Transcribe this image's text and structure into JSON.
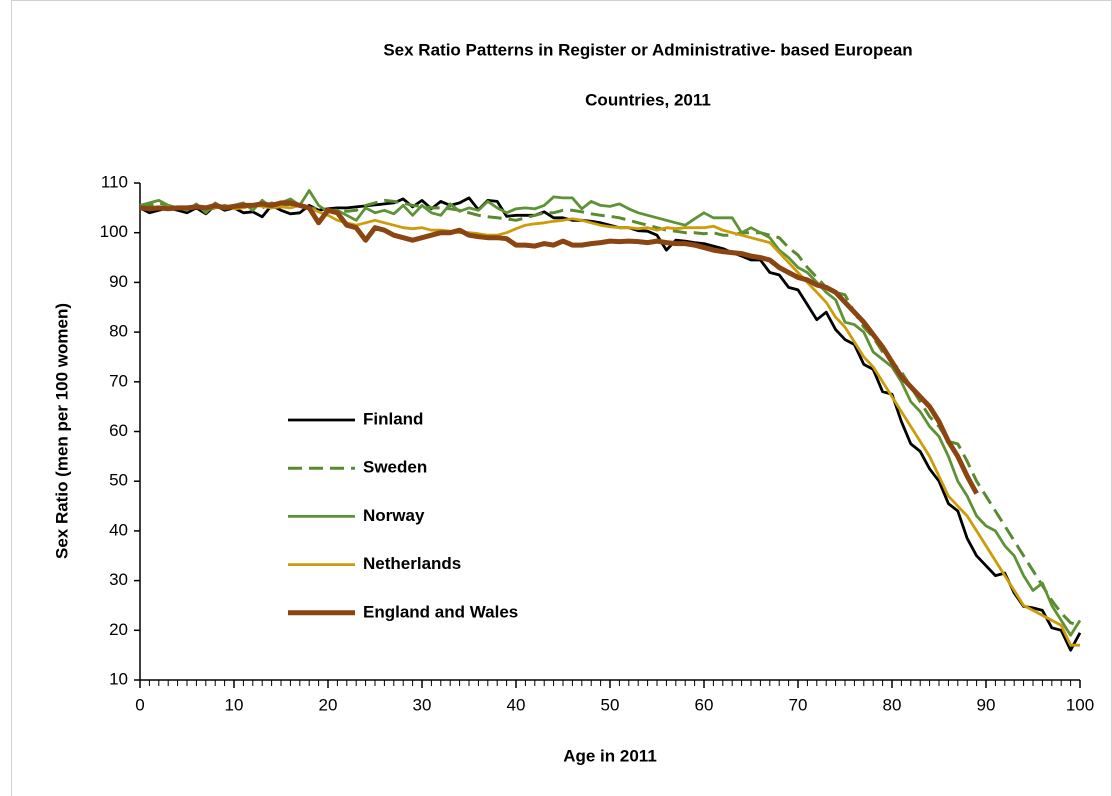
{
  "chart_data": {
    "type": "line",
    "title_lines": [
      "Sex Ratio Patterns in Register or Administrative- based European",
      "Countries,  2011"
    ],
    "x_label": "Age in 2011",
    "y_label": "Sex Ratio (men per 100 women)",
    "x": [
      0,
      1,
      2,
      3,
      4,
      5,
      6,
      7,
      8,
      9,
      10,
      11,
      12,
      13,
      14,
      15,
      16,
      17,
      18,
      19,
      20,
      21,
      22,
      23,
      24,
      25,
      26,
      27,
      28,
      29,
      30,
      31,
      32,
      33,
      34,
      35,
      36,
      37,
      38,
      39,
      40,
      41,
      42,
      43,
      44,
      45,
      46,
      47,
      48,
      49,
      50,
      51,
      52,
      53,
      54,
      55,
      56,
      57,
      58,
      59,
      60,
      61,
      62,
      63,
      64,
      65,
      66,
      67,
      68,
      69,
      70,
      71,
      72,
      73,
      74,
      75,
      76,
      77,
      78,
      79,
      80,
      81,
      82,
      83,
      84,
      85,
      86,
      87,
      88,
      89,
      90,
      91,
      92,
      93,
      94,
      95,
      96,
      97,
      98,
      99,
      100
    ],
    "xlim": [
      0,
      100
    ],
    "xticks": [
      0,
      10,
      20,
      30,
      40,
      50,
      60,
      70,
      80,
      90,
      100
    ],
    "ylim": [
      10,
      110
    ],
    "yticks": [
      10,
      20,
      30,
      40,
      50,
      60,
      70,
      80,
      90,
      100,
      110
    ],
    "series": [
      {
        "name": "Finland",
        "color": "#000000",
        "values": [
          105,
          104,
          104.5,
          105,
          104.5,
          104,
          105,
          103.8,
          105.5,
          104.5,
          105,
          104,
          104.2,
          103.2,
          105.5,
          104.5,
          103.8,
          104,
          105.5,
          104.5,
          104.8,
          105,
          105,
          105.2,
          105.4,
          105.6,
          105.8,
          106,
          106.8,
          105.2,
          106.5,
          104.8,
          106.3,
          105.5,
          106,
          107,
          104.6,
          106.5,
          106.3,
          103.3,
          103.5,
          103.5,
          103.5,
          104.2,
          103,
          103,
          102.5,
          102.5,
          102.3,
          102,
          101.5,
          101,
          101,
          100.4,
          100.3,
          99.5,
          96.5,
          98.5,
          98.3,
          98,
          97.8,
          97.3,
          96.8,
          96,
          95.3,
          94.5,
          94.5,
          92,
          91.5,
          89,
          88.5,
          85.5,
          82.5,
          84,
          80.5,
          78.5,
          77.5,
          73.5,
          72.5,
          68,
          67.5,
          62,
          57.5,
          56,
          52.5,
          50,
          45.5,
          44,
          38.5,
          35,
          33,
          31,
          31.5,
          27.5,
          24.8,
          24.5,
          24,
          20.5,
          20,
          16,
          19.5
        ]
      },
      {
        "name": "Sweden",
        "color": "#5a8a30",
        "dashed": true,
        "values": [
          105,
          105.5,
          106,
          105.5,
          105,
          104.8,
          105.2,
          104.5,
          105,
          105.5,
          105,
          105.3,
          105.5,
          105,
          106,
          105.5,
          105.7,
          105.5,
          105,
          104.8,
          104.5,
          104.5,
          104.3,
          104.5,
          105.5,
          106,
          106.5,
          106.3,
          106,
          105.5,
          105.3,
          105,
          105,
          104.8,
          104.5,
          104,
          103.5,
          103.2,
          103,
          102.8,
          102.5,
          103,
          103.5,
          104,
          104,
          104.5,
          104.5,
          104.2,
          103.8,
          103.5,
          103.3,
          103,
          102.5,
          102,
          101.5,
          101,
          100.5,
          100.3,
          100,
          100,
          99.8,
          100,
          99.5,
          99.5,
          100,
          100,
          100,
          99.5,
          99,
          97,
          95.5,
          93,
          91,
          89,
          88,
          87.5,
          84,
          81,
          79,
          76,
          74,
          72,
          69,
          66,
          63,
          61,
          58,
          57.5,
          54,
          50,
          47,
          44,
          41,
          38,
          35,
          32,
          29,
          26,
          23.5,
          21.5,
          21
        ]
      },
      {
        "name": "Norway",
        "color": "#5e9236",
        "values": [
          105.5,
          106,
          106.5,
          105.5,
          105,
          104.5,
          105.8,
          104,
          106,
          104.8,
          105.5,
          106,
          104.5,
          106.5,
          105,
          106,
          106.8,
          105.5,
          108.5,
          105.5,
          104.2,
          104.5,
          103.5,
          102.5,
          105,
          104,
          104.5,
          103.8,
          105.5,
          103.5,
          105.5,
          104,
          103.5,
          105.8,
          104.3,
          105,
          104.5,
          106.3,
          105,
          104,
          104.8,
          105,
          104.8,
          105.5,
          107.2,
          107,
          107,
          104.8,
          106.3,
          105.5,
          105.3,
          105.8,
          104.8,
          104,
          103.5,
          103,
          102.5,
          102,
          101.5,
          102.8,
          104,
          103,
          103,
          103,
          100,
          101,
          100,
          99,
          96.5,
          95,
          93,
          92,
          90,
          88,
          86.5,
          82,
          81.5,
          80,
          76,
          74.5,
          73,
          70,
          66,
          64,
          61,
          59,
          55,
          50,
          47,
          43,
          41,
          40,
          37,
          35,
          31,
          28,
          29.5,
          25,
          22,
          19,
          22
        ]
      },
      {
        "name": "Netherlands",
        "color": "#cc9c0a",
        "values": [
          105,
          104.8,
          105,
          105.2,
          105,
          104.8,
          105,
          105.2,
          105,
          105.3,
          104.8,
          105,
          105.5,
          105.3,
          105,
          105.2,
          105,
          105.5,
          105,
          104.2,
          103.5,
          102.5,
          102,
          101.5,
          102,
          102.5,
          102,
          101.5,
          101,
          100.8,
          101,
          100.5,
          100.5,
          100.3,
          100,
          100,
          99.8,
          99.5,
          99.5,
          100,
          100.8,
          101.5,
          101.8,
          102,
          102.3,
          102.5,
          102.8,
          102.5,
          102,
          101.5,
          101.2,
          101,
          101,
          100.8,
          101,
          100.5,
          101,
          100.8,
          101,
          101,
          101,
          101.3,
          100.5,
          100,
          99.5,
          99,
          98.5,
          98,
          96,
          94,
          92,
          90,
          88,
          86,
          83,
          81,
          78,
          75,
          73,
          70,
          67,
          64,
          61,
          58,
          55,
          51,
          47,
          45,
          43,
          40,
          37,
          34,
          31,
          28,
          25,
          24,
          23,
          22,
          21,
          17,
          17
        ]
      },
      {
        "name": "England and Wales",
        "color": "#8b4513",
        "thick": true,
        "values": [
          105,
          104.8,
          105,
          104.8,
          105,
          105,
          105.2,
          105,
          105.5,
          105,
          105.3,
          105.5,
          105.5,
          105.8,
          105.5,
          106,
          106,
          105.5,
          105,
          102,
          104.5,
          104,
          101.5,
          101,
          98.5,
          101,
          100.5,
          99.5,
          99,
          98.5,
          99,
          99.5,
          100,
          100,
          100.5,
          99.5,
          99.2,
          99,
          99,
          98.8,
          97.5,
          97.5,
          97.3,
          97.8,
          97.5,
          98.3,
          97.5,
          97.5,
          97.8,
          98,
          98.3,
          98.2,
          98.3,
          98.2,
          98,
          98.3,
          98,
          97.8,
          97.8,
          97.5,
          97,
          96.5,
          96.2,
          96,
          95.8,
          95.3,
          95,
          94.5,
          93,
          92,
          91,
          90.5,
          89.5,
          89,
          88,
          86,
          84,
          82,
          79.5,
          77,
          74,
          71,
          69,
          67,
          65,
          62,
          58,
          55,
          51,
          47.5,
          null,
          null,
          null,
          null,
          null,
          null,
          null,
          null,
          null,
          null,
          null
        ]
      }
    ]
  }
}
